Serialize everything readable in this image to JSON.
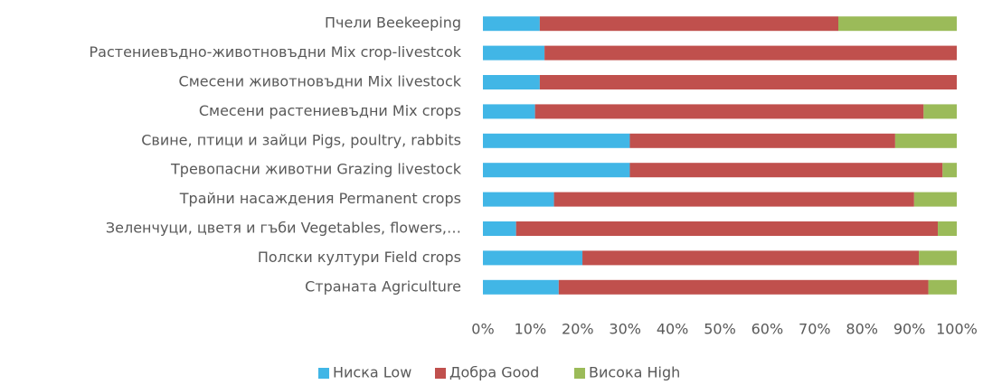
{
  "chart_data": {
    "type": "stacked_bar_horizontal",
    "categories": [
      "Пчели Beekeeping",
      "Растениевъдно-животновъдни Mix crop-livestcok",
      "Смесени животновъдни Mix livestock",
      "Смесени растениевъдни Mix crops",
      "Свине, птици и зайци Pigs, poultry, rabbits",
      "Тревопасни животни Grazing livestock",
      "Трайни насаждения Permanent crops",
      "Зеленчуци, цветя и гъби Vegetables, flowers,…",
      "Полски култури Field crops",
      "Страната Agriculture"
    ],
    "series": [
      {
        "name": "Ниска Low",
        "color": "#41b6e6",
        "values": [
          12,
          13,
          12,
          11,
          31,
          31,
          15,
          7,
          21,
          16
        ]
      },
      {
        "name": "Добра Good",
        "color": "#c0504d",
        "values": [
          63,
          87,
          88,
          82,
          56,
          66,
          76,
          89,
          71,
          78
        ]
      },
      {
        "name": "Висока High",
        "color": "#9bbb59",
        "values": [
          25,
          0,
          0,
          7,
          13,
          3,
          9,
          4,
          8,
          6
        ]
      }
    ],
    "xlim": [
      0,
      100
    ],
    "xticks": [
      {
        "value": 0,
        "label": "0%"
      },
      {
        "value": 10,
        "label": "10%"
      },
      {
        "value": 20,
        "label": "20%"
      },
      {
        "value": 30,
        "label": "30%"
      },
      {
        "value": 40,
        "label": "40%"
      },
      {
        "value": 50,
        "label": "50%"
      },
      {
        "value": 60,
        "label": "60%"
      },
      {
        "value": 70,
        "label": "70%"
      },
      {
        "value": 80,
        "label": "80%"
      },
      {
        "value": 90,
        "label": "90%"
      },
      {
        "value": 100,
        "label": "100%"
      }
    ],
    "legend": "bottom"
  }
}
